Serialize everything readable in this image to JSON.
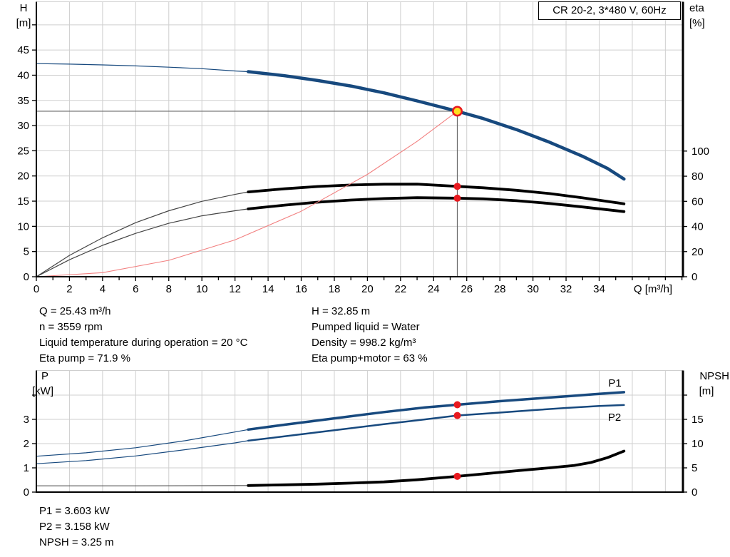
{
  "title_box": {
    "label": "CR 20-2, 3*480 V, 60Hz"
  },
  "axes_labels": {
    "h": "H",
    "h_unit": "[m]",
    "eta": "eta",
    "eta_unit": "[%]",
    "q": "Q [m³/h]",
    "p": "P",
    "p_unit": "[kW]",
    "npsh": "NPSH",
    "npsh_unit": "[m]"
  },
  "info_left": [
    "Q = 25.43 m³/h",
    "n = 3559 rpm",
    "Liquid temperature during operation = 20 °C",
    "Eta pump = 71.9 %"
  ],
  "info_right": [
    "H = 32.85 m",
    "Pumped liquid = Water",
    "Density = 998.2 kg/m³",
    "Eta pump+motor = 63 %"
  ],
  "info_bottom": [
    "P1 = 3.603 kW",
    "P2 = 3.158 kW",
    "NPSH = 3.25 m"
  ],
  "colors": {
    "blue": "#17497E",
    "black": "#000000",
    "thin_black": "#444444",
    "thin_gray": "#555555",
    "red": "#E8191F",
    "red_curve": "#F28080",
    "duty_fill": "#FFDF1E",
    "grid": "#CFCFCF",
    "ref": "#666666"
  },
  "chart_data": [
    {
      "id": "top",
      "name": "hq-eta-chart",
      "type": "line",
      "title": "CR 20-2, 3*480 V, 60Hz",
      "x": {
        "label": "Q [m³/h]",
        "min": 0,
        "max": 39,
        "ticks": [
          0,
          2,
          4,
          6,
          8,
          10,
          12,
          14,
          16,
          18,
          20,
          22,
          24,
          26,
          28,
          30,
          32,
          34
        ]
      },
      "y_left": {
        "label": "H [m]",
        "min": 0,
        "max": 54.5,
        "ticks": [
          0,
          5,
          10,
          15,
          20,
          25,
          30,
          35,
          40,
          45
        ],
        "unlabeled": [
          50
        ]
      },
      "y_right": {
        "label": "eta [%]",
        "min": 0,
        "max": 219,
        "ticks": [
          0,
          20,
          40,
          60,
          80,
          100
        ],
        "unlabeled": []
      },
      "series": [
        {
          "name": "head-curve-thin",
          "axis": "left",
          "color": "#17497E",
          "width": 1.2,
          "points": [
            [
              0,
              42.3
            ],
            [
              2,
              42.2
            ],
            [
              4,
              42.05
            ],
            [
              6,
              41.85
            ],
            [
              8,
              41.6
            ],
            [
              10,
              41.3
            ],
            [
              12,
              40.85
            ],
            [
              12.8,
              40.7
            ]
          ]
        },
        {
          "name": "head-curve",
          "axis": "left",
          "color": "#17497E",
          "width": 4.5,
          "points": [
            [
              12.8,
              40.7
            ],
            [
              15,
              39.9
            ],
            [
              17,
              38.95
            ],
            [
              19,
              37.85
            ],
            [
              21,
              36.5
            ],
            [
              23,
              34.9
            ],
            [
              25.43,
              32.85
            ],
            [
              27,
              31.4
            ],
            [
              29,
              29.2
            ],
            [
              31,
              26.7
            ],
            [
              33,
              23.9
            ],
            [
              34.5,
              21.5
            ],
            [
              35.5,
              19.4
            ]
          ]
        },
        {
          "name": "eta-pump-curve-thin",
          "axis": "right",
          "color": "#444444",
          "width": 1.2,
          "points": [
            [
              0,
              0
            ],
            [
              2,
              17
            ],
            [
              4,
              31
            ],
            [
              6,
              43
            ],
            [
              8,
              52.5
            ],
            [
              10,
              60
            ],
            [
              12,
              65.5
            ],
            [
              12.8,
              67.5
            ]
          ]
        },
        {
          "name": "eta-pump-curve",
          "axis": "right",
          "color": "#000000",
          "width": 3.8,
          "points": [
            [
              12.8,
              67.5
            ],
            [
              15,
              70
            ],
            [
              17,
              71.8
            ],
            [
              19,
              73
            ],
            [
              21,
              73.6
            ],
            [
              23,
              73.7
            ],
            [
              25.43,
              71.9
            ],
            [
              27,
              70.8
            ],
            [
              29,
              68.8
            ],
            [
              31,
              66.2
            ],
            [
              33,
              62.8
            ],
            [
              35.5,
              58
            ]
          ]
        },
        {
          "name": "eta-pump-motor-curve-thin",
          "axis": "right",
          "color": "#444444",
          "width": 1.2,
          "points": [
            [
              0,
              0
            ],
            [
              2,
              13.5
            ],
            [
              4,
              25
            ],
            [
              6,
              34.5
            ],
            [
              8,
              42.5
            ],
            [
              10,
              48.5
            ],
            [
              12,
              52.5
            ],
            [
              12.8,
              54
            ]
          ]
        },
        {
          "name": "eta-pump-motor-curve",
          "axis": "right",
          "color": "#000000",
          "width": 3.8,
          "points": [
            [
              12.8,
              54
            ],
            [
              15,
              57
            ],
            [
              17,
              59.3
            ],
            [
              19,
              61
            ],
            [
              21,
              62.2
            ],
            [
              23,
              62.9
            ],
            [
              25.43,
              62.5
            ],
            [
              27,
              62
            ],
            [
              29,
              60.5
            ],
            [
              31,
              58.3
            ],
            [
              33,
              55.5
            ],
            [
              35.5,
              51.8
            ]
          ]
        },
        {
          "name": "system-curve",
          "axis": "left",
          "color": "#F28080",
          "width": 1.1,
          "points": [
            [
              0,
              0
            ],
            [
              4,
              0.81
            ],
            [
              8,
              3.25
            ],
            [
              12,
              7.31
            ],
            [
              16,
              13.0
            ],
            [
              20,
              20.32
            ],
            [
              23,
              26.87
            ],
            [
              25.43,
              32.85
            ]
          ]
        }
      ],
      "ref_lines": [
        {
          "dir": "h",
          "axis": "left",
          "v": 32.85,
          "q1": 0,
          "q2": 25.43
        },
        {
          "dir": "v",
          "axis": "left",
          "q": 25.43,
          "v1": 0,
          "v2": 32.85
        }
      ],
      "markers": [
        {
          "kind": "duty",
          "axis": "left",
          "q": 25.43,
          "v": 32.85
        },
        {
          "kind": "dot",
          "axis": "right",
          "q": 25.43,
          "v": 71.9
        },
        {
          "kind": "dot",
          "axis": "right",
          "q": 25.43,
          "v": 62.5
        }
      ],
      "curve_labels": []
    },
    {
      "id": "bottom",
      "name": "power-npsh-chart",
      "type": "line",
      "x": {
        "label": "",
        "min": 0,
        "max": 39,
        "ticks": []
      },
      "y_left": {
        "label": "P [kW]",
        "min": 0,
        "max": 5,
        "ticks": [
          0,
          1,
          2,
          3
        ],
        "unlabeled": [
          4
        ]
      },
      "y_right": {
        "label": "NPSH [m]",
        "min": 0,
        "max": 25,
        "ticks": [
          0,
          5,
          10,
          15
        ],
        "unlabeled": [
          20
        ]
      },
      "series": [
        {
          "name": "p1-curve-thin",
          "axis": "left",
          "color": "#17497E",
          "width": 1.2,
          "points": [
            [
              0,
              1.48
            ],
            [
              3,
              1.62
            ],
            [
              6,
              1.83
            ],
            [
              9,
              2.12
            ],
            [
              12,
              2.48
            ],
            [
              12.8,
              2.58
            ]
          ]
        },
        {
          "name": "p1-curve",
          "axis": "left",
          "color": "#17497E",
          "width": 3.5,
          "points": [
            [
              12.8,
              2.58
            ],
            [
              15,
              2.78
            ],
            [
              18,
              3.04
            ],
            [
              21,
              3.3
            ],
            [
              23.5,
              3.49
            ],
            [
              25.43,
              3.603
            ],
            [
              28,
              3.75
            ],
            [
              30,
              3.85
            ],
            [
              32,
              3.95
            ],
            [
              34,
              4.05
            ],
            [
              35.5,
              4.12
            ]
          ]
        },
        {
          "name": "p2-curve-thin",
          "axis": "left",
          "color": "#17497E",
          "width": 1.2,
          "points": [
            [
              0,
              1.17
            ],
            [
              3,
              1.3
            ],
            [
              6,
              1.49
            ],
            [
              9,
              1.75
            ],
            [
              12,
              2.03
            ],
            [
              12.8,
              2.12
            ]
          ]
        },
        {
          "name": "p2-curve",
          "axis": "left",
          "color": "#17497E",
          "width": 2.5,
          "points": [
            [
              12.8,
              2.12
            ],
            [
              15,
              2.3
            ],
            [
              18,
              2.55
            ],
            [
              21,
              2.8
            ],
            [
              23.5,
              3.0
            ],
            [
              25.43,
              3.158
            ],
            [
              28,
              3.28
            ],
            [
              30,
              3.38
            ],
            [
              32,
              3.47
            ],
            [
              34,
              3.55
            ],
            [
              35.5,
              3.59
            ]
          ]
        },
        {
          "name": "npsh-curve-thin",
          "axis": "right",
          "color": "#555555",
          "width": 1.2,
          "points": [
            [
              0,
              1.3
            ],
            [
              6,
              1.3
            ],
            [
              12,
              1.34
            ],
            [
              12.8,
              1.35
            ]
          ]
        },
        {
          "name": "npsh-curve",
          "axis": "right",
          "color": "#000000",
          "width": 3.8,
          "points": [
            [
              12.8,
              1.35
            ],
            [
              15,
              1.5
            ],
            [
              17,
              1.65
            ],
            [
              19,
              1.85
            ],
            [
              21,
              2.1
            ],
            [
              23,
              2.55
            ],
            [
              25.43,
              3.25
            ],
            [
              27,
              3.75
            ],
            [
              29,
              4.4
            ],
            [
              31,
              5.0
            ],
            [
              32.5,
              5.5
            ],
            [
              33.5,
              6.1
            ],
            [
              34.5,
              7.1
            ],
            [
              35.5,
              8.45
            ]
          ]
        }
      ],
      "ref_lines": [],
      "markers": [
        {
          "kind": "dot",
          "axis": "left",
          "q": 25.43,
          "v": 3.603
        },
        {
          "kind": "dot",
          "axis": "left",
          "q": 25.43,
          "v": 3.158
        },
        {
          "kind": "dot",
          "axis": "right",
          "q": 25.43,
          "v": 3.25
        }
      ],
      "curve_labels": [
        {
          "text": "P1",
          "axis": "left",
          "q": 34.95,
          "v": 4.35
        },
        {
          "text": "P2",
          "axis": "left",
          "q": 34.93,
          "v": 2.94
        }
      ]
    }
  ]
}
